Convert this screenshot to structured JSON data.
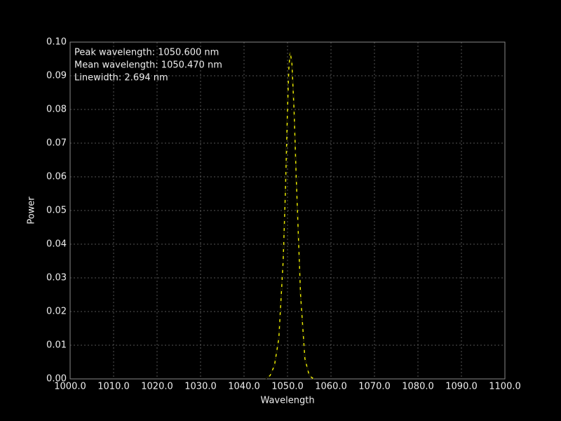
{
  "chart_data": {
    "type": "line",
    "annotations": [
      "Peak wavelength: 1050.600 nm",
      "Mean wavelength: 1050.470 nm",
      "Linewidth: 2.694 nm"
    ],
    "xlabel": "Wavelength",
    "ylabel": "Power",
    "x": [
      1045,
      1046,
      1047,
      1048,
      1049,
      1049.5,
      1050,
      1050.3,
      1050.6,
      1051,
      1051.5,
      1052,
      1053,
      1054,
      1055,
      1056
    ],
    "series": [
      {
        "color": "#e8e800",
        "values": [
          0,
          0.001,
          0.004,
          0.012,
          0.035,
          0.055,
          0.08,
          0.092,
          0.097,
          0.094,
          0.08,
          0.06,
          0.025,
          0.006,
          0.001,
          0
        ]
      },
      {
        "color": "#000000",
        "dashed": true,
        "values": [
          0,
          0.001,
          0.004,
          0.012,
          0.035,
          0.055,
          0.08,
          0.092,
          0.097,
          0.094,
          0.08,
          0.06,
          0.025,
          0.006,
          0.001,
          0
        ]
      }
    ],
    "xlim": [
      1000,
      1100
    ],
    "xticks": [
      {
        "value": 1000,
        "label": "1000.0"
      },
      {
        "value": 1010,
        "label": "1010.0"
      },
      {
        "value": 1020,
        "label": "1020.0"
      },
      {
        "value": 1030,
        "label": "1030.0"
      },
      {
        "value": 1040,
        "label": "1040.0"
      },
      {
        "value": 1050,
        "label": "1050.0"
      },
      {
        "value": 1060,
        "label": "1060.0"
      },
      {
        "value": 1070,
        "label": "1070.0"
      },
      {
        "value": 1080,
        "label": "1080.0"
      },
      {
        "value": 1090,
        "label": "1090.0"
      },
      {
        "value": 1100,
        "label": "1100.0"
      }
    ],
    "ylim": [
      0,
      0.1
    ],
    "yticks": [
      {
        "value": 0,
        "label": "0.00"
      },
      {
        "value": 0.01,
        "label": "0.01"
      },
      {
        "value": 0.02,
        "label": "0.02"
      },
      {
        "value": 0.03,
        "label": "0.03"
      },
      {
        "value": 0.04,
        "label": "0.04"
      },
      {
        "value": 0.05,
        "label": "0.05"
      },
      {
        "value": 0.06,
        "label": "0.06"
      },
      {
        "value": 0.07,
        "label": "0.07"
      },
      {
        "value": 0.08,
        "label": "0.08"
      },
      {
        "value": 0.09,
        "label": "0.09"
      },
      {
        "value": 0.1,
        "label": "0.10"
      }
    ],
    "grid": true
  }
}
